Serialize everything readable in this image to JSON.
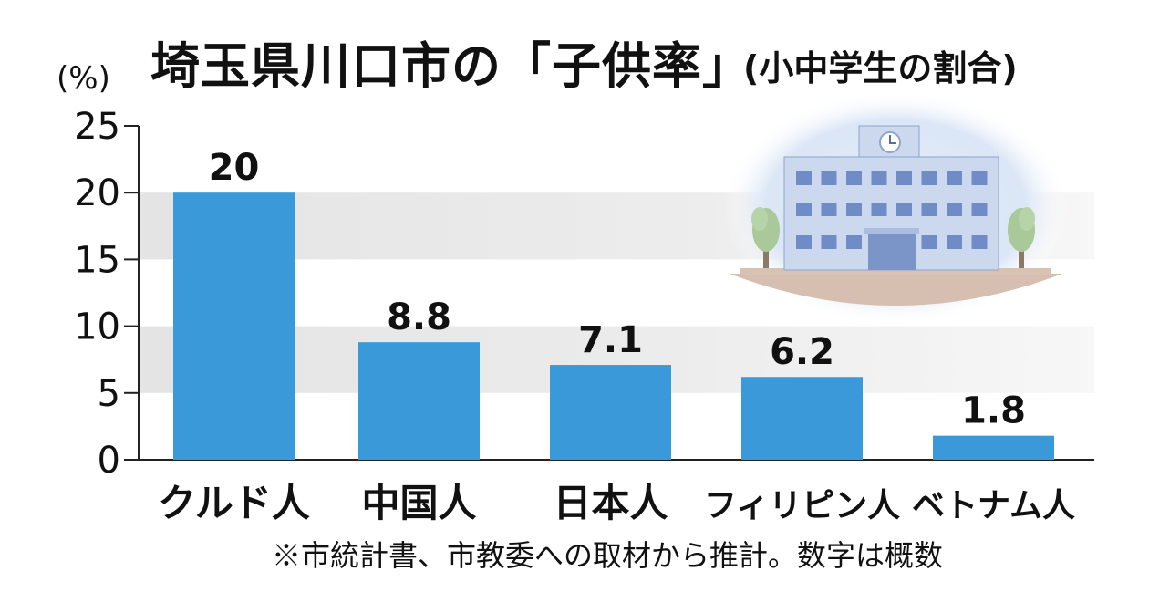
{
  "chart_data": {
    "type": "bar",
    "title": "埼玉県川口市の「子供率」",
    "subtitle": "(小中学生の割合)",
    "ylabel": "(%)",
    "xlabel": "",
    "categories": [
      "クルド人",
      "中国人",
      "日本人",
      "フィリピン人",
      "ベトナム人"
    ],
    "values": [
      20,
      8.8,
      7.1,
      6.2,
      1.8
    ],
    "value_labels": [
      "20",
      "8.8",
      "7.1",
      "6.2",
      "1.8"
    ],
    "ylim": [
      0,
      25
    ],
    "yticks": [
      "0",
      "5",
      "10",
      "15",
      "20",
      "25"
    ],
    "grid": "alternating horizontal bands",
    "legend": "none",
    "bar_color": "#3a9ad9"
  },
  "footnote": "※市統計書、市教委への取材から推計。数字は概数",
  "illustration": "school-building-icon"
}
